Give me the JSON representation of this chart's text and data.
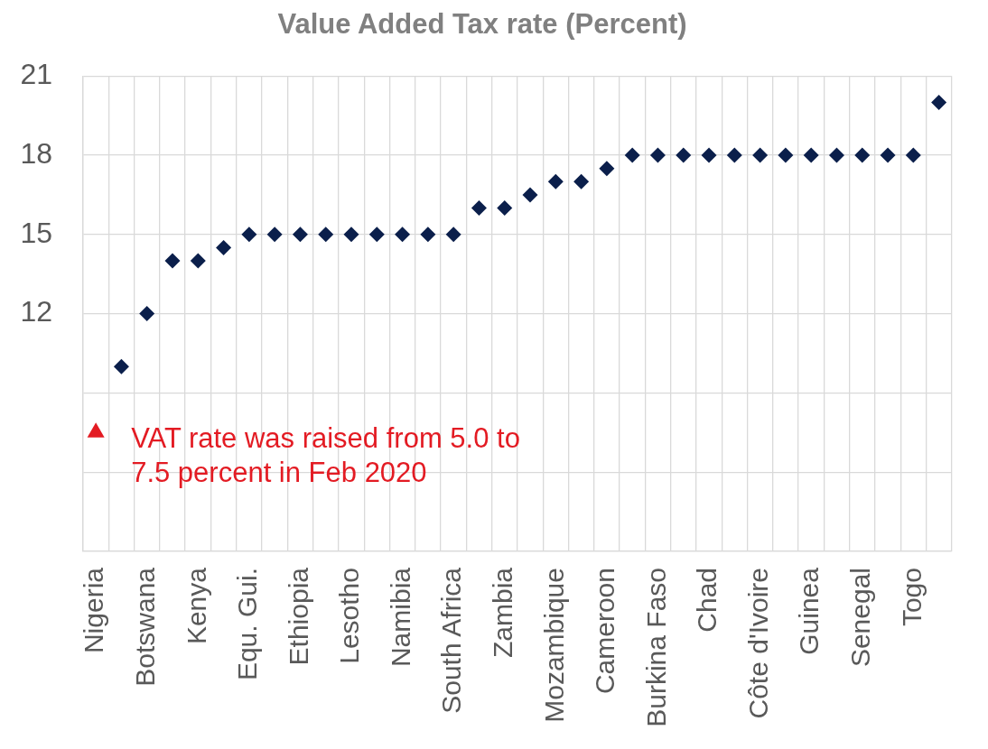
{
  "chart_data": {
    "type": "scatter",
    "title": "Value Added Tax rate (Percent)",
    "categories": [
      "Nigeria",
      null,
      "Botswana",
      null,
      "Kenya",
      null,
      "Equ. Gui.",
      null,
      "Ethiopia",
      null,
      "Lesotho",
      null,
      "Namibia",
      null,
      "South Africa",
      null,
      "Zambia",
      null,
      "Mozambique",
      null,
      "Cameroon",
      null,
      "Burkina Faso",
      null,
      "Chad",
      null,
      "Côte d'Ivoire",
      null,
      "Guinea",
      null,
      "Senegal",
      null,
      "Togo",
      null
    ],
    "series": [
      {
        "color": "#0b1f4b",
        "values": [
          null,
          10,
          12,
          14,
          14,
          14.5,
          15,
          15,
          15,
          15,
          15,
          15,
          15,
          15,
          15,
          16,
          16,
          16.5,
          17,
          17,
          17.5,
          18,
          18,
          18,
          18,
          18,
          18,
          18,
          18,
          18,
          18,
          18,
          18,
          20
        ]
      },
      {
        "type": "scatter",
        "x": [
          "Nigeria"
        ],
        "values": [
          7.5
        ],
        "color": "#e31b23",
        "marker": "triangle"
      }
    ],
    "marker": "diamond",
    "ylim": [
      3,
      21
    ],
    "yticks": [
      {
        "value": 3,
        "label": null
      },
      {
        "value": 6,
        "label": null
      },
      {
        "value": 9,
        "label": null
      },
      12,
      15,
      18,
      21
    ],
    "grid": true,
    "annotations": [
      {
        "text": "VAT rate was raised from 5.0 to 7.5 percent in Feb 2020",
        "x": "Nigeria",
        "y": 7.5
      }
    ]
  }
}
